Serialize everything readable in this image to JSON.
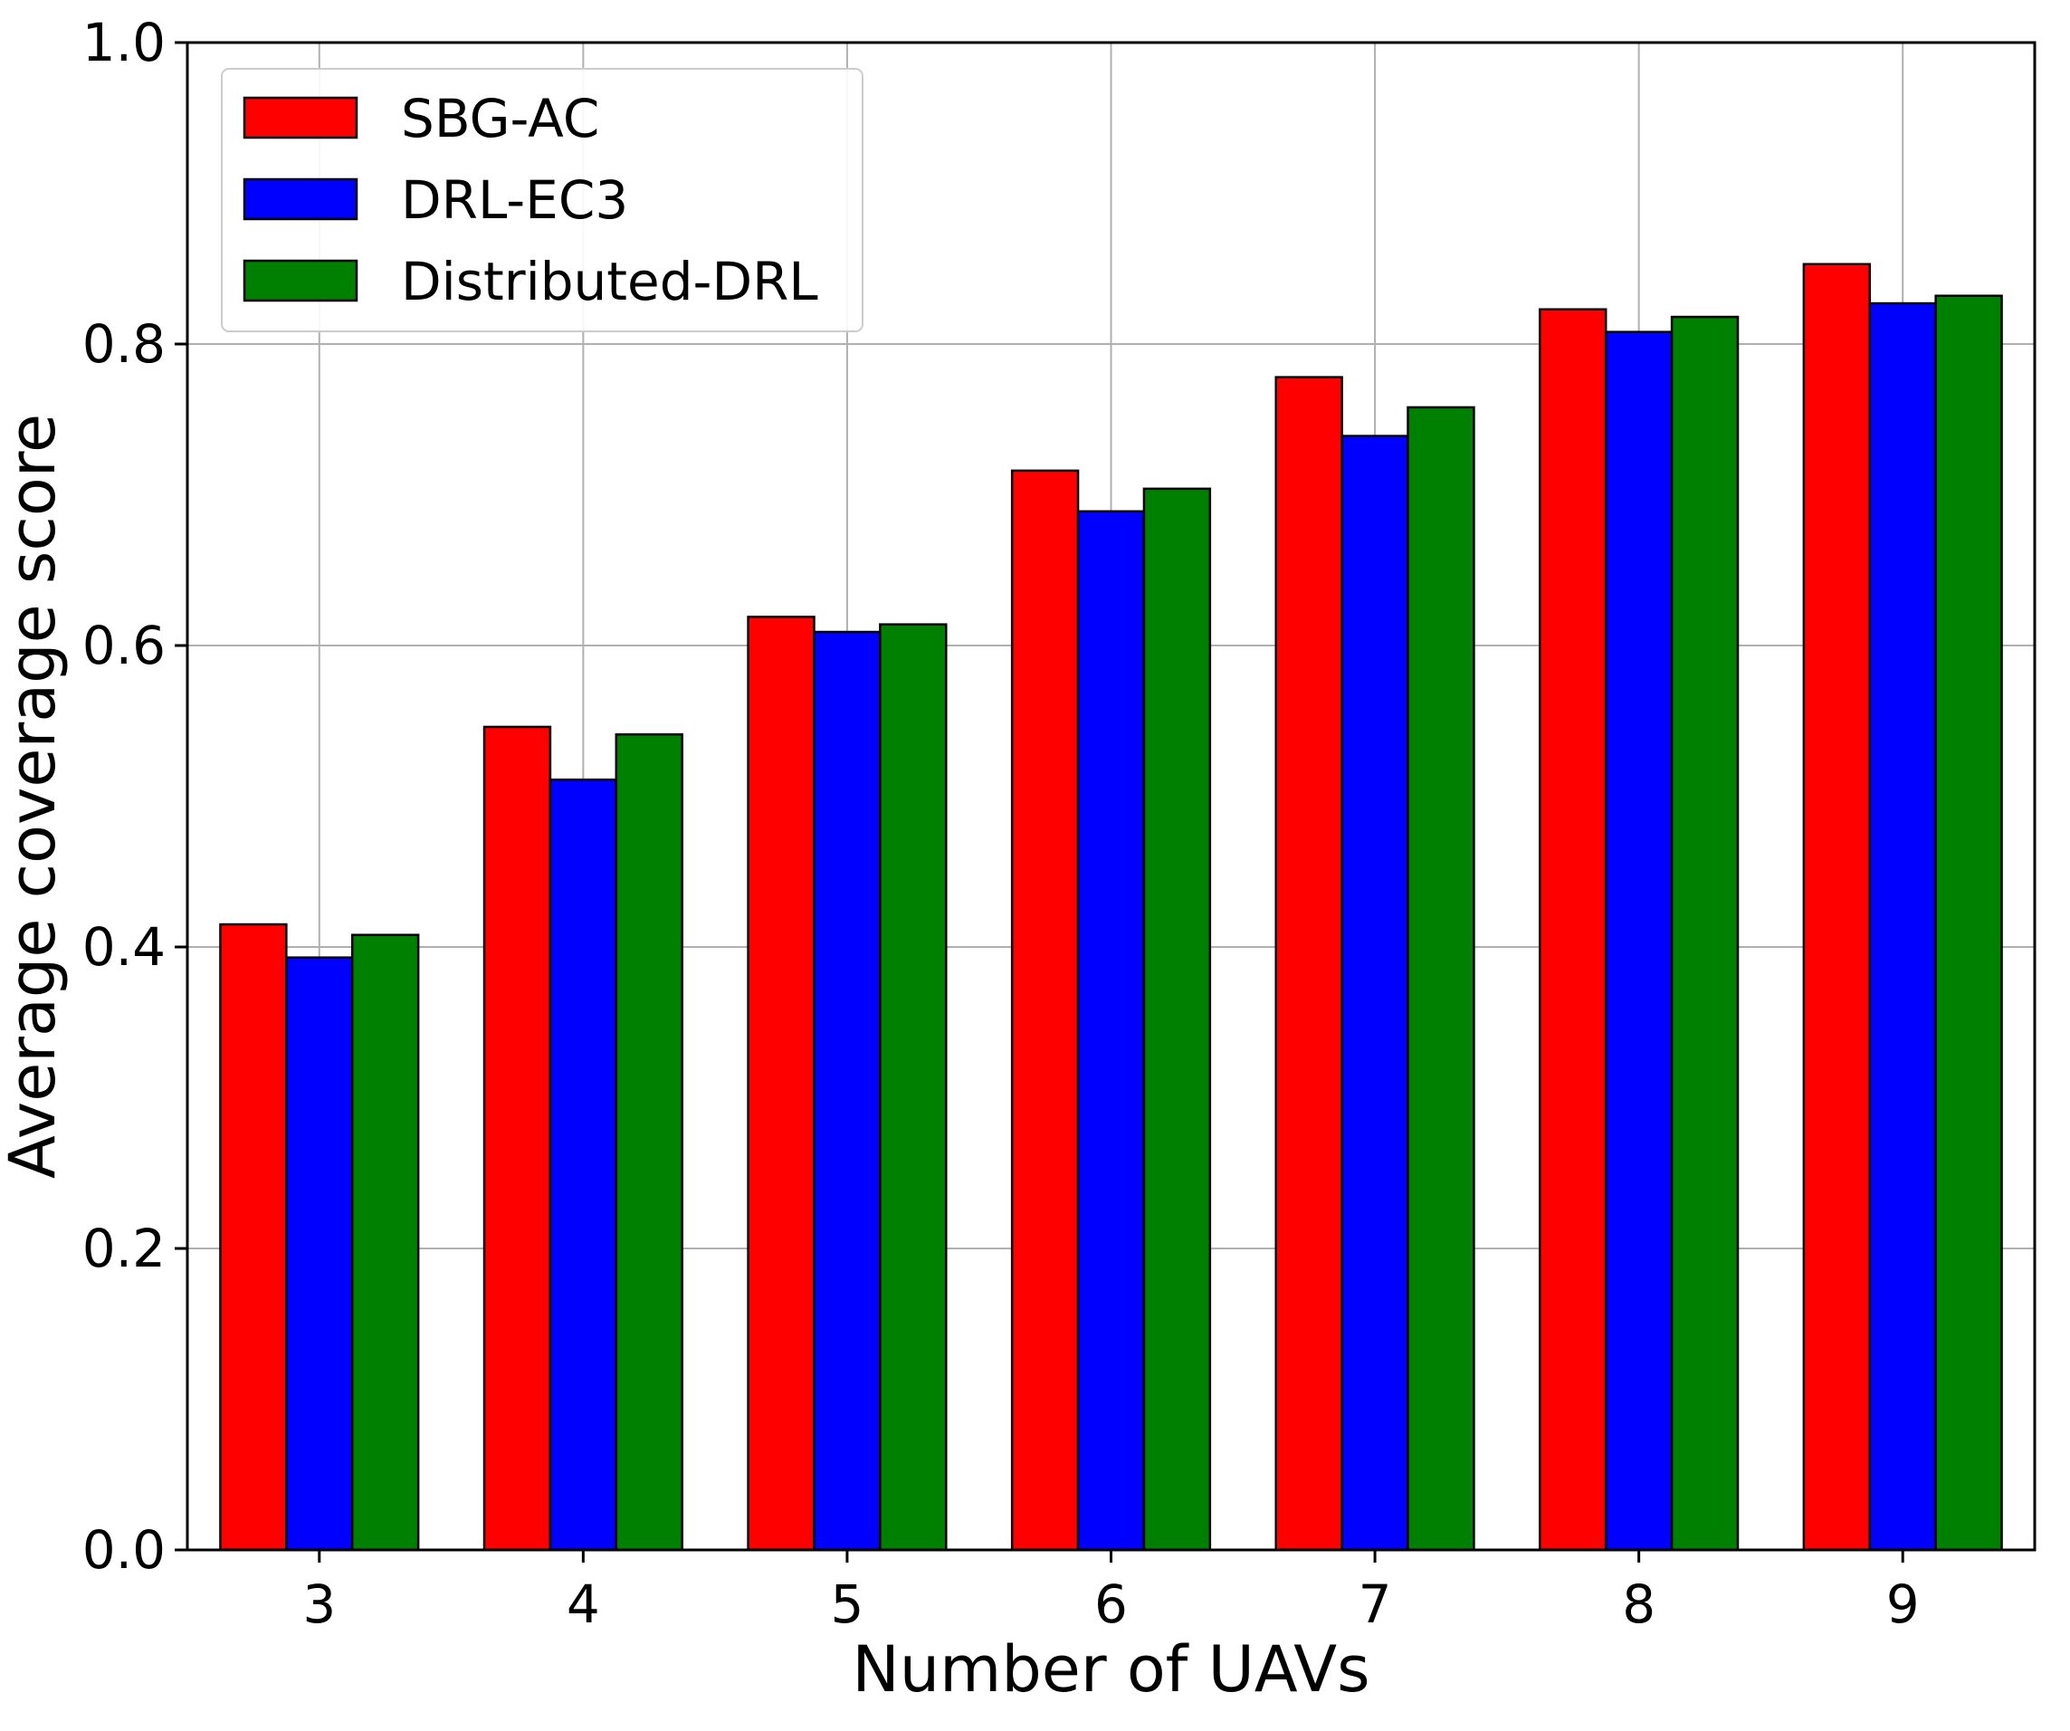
{
  "chart_data": {
    "type": "bar",
    "categories": [
      "3",
      "4",
      "5",
      "6",
      "7",
      "8",
      "9"
    ],
    "series": [
      {
        "name": "SBG-AC",
        "color": "#ff0000",
        "values": [
          0.415,
          0.546,
          0.619,
          0.716,
          0.778,
          0.823,
          0.853
        ]
      },
      {
        "name": "DRL-EC3",
        "color": "#0000ff",
        "values": [
          0.393,
          0.511,
          0.609,
          0.689,
          0.739,
          0.808,
          0.827
        ]
      },
      {
        "name": "Distributed-DRL",
        "color": "#008000",
        "values": [
          0.408,
          0.541,
          0.614,
          0.704,
          0.758,
          0.818,
          0.832
        ]
      }
    ],
    "xlabel": "Number of UAVs",
    "ylabel": "Average coverage score",
    "ylim": [
      0,
      1.0
    ],
    "yticks": [
      "0.0",
      "0.2",
      "0.4",
      "0.6",
      "0.8",
      "1.0"
    ],
    "grid": true,
    "legend": "top-left"
  }
}
